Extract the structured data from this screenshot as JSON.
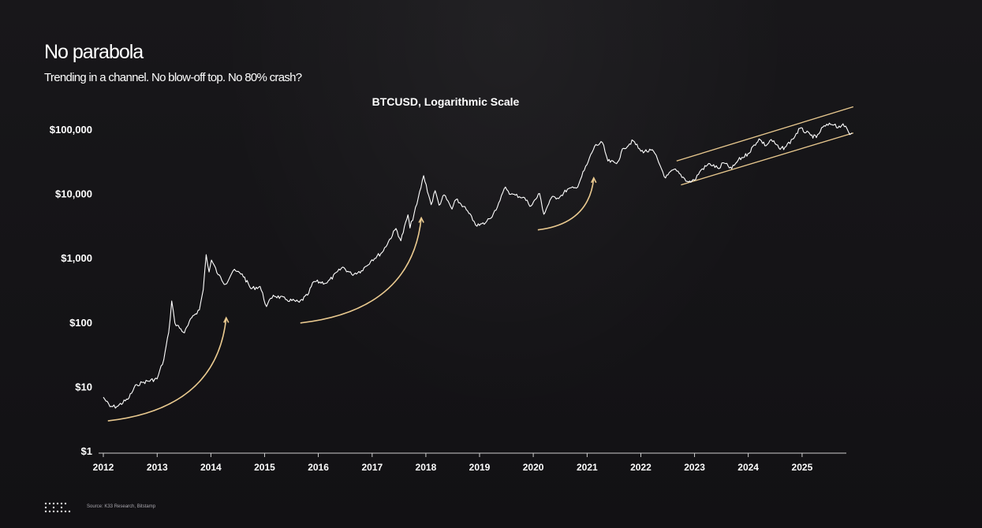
{
  "header": {
    "title": "No parabola",
    "subtitle": "Trending in a channel. No blow-off top. No 80% crash?"
  },
  "footer": {
    "logo_icon": "k33-dots-logo-icon",
    "source": "Source: K33 Research, Bitstamp"
  },
  "colors": {
    "background": "#141316",
    "price_line": "#ffffff",
    "accent": "#e9c98f",
    "axis": "#cfcfcf"
  },
  "chart_data": {
    "type": "line",
    "title": "BTCUSD, Logarithmic Scale",
    "xlabel": "",
    "ylabel": "",
    "y_scale": "log",
    "xlim": [
      "2012-01-01",
      "2025-12-15"
    ],
    "ylim": [
      1,
      200000
    ],
    "x_ticks": [
      "2012",
      "2013",
      "2014",
      "2015",
      "2016",
      "2017",
      "2018",
      "2019",
      "2020",
      "2021",
      "2022",
      "2023",
      "2024",
      "2025"
    ],
    "y_ticks": [
      {
        "value": 1,
        "label": "$1"
      },
      {
        "value": 10,
        "label": "$10"
      },
      {
        "value": 100,
        "label": "$100"
      },
      {
        "value": 1000,
        "label": "$1,000"
      },
      {
        "value": 10000,
        "label": "$10,000"
      },
      {
        "value": 100000,
        "label": "$100,000"
      }
    ],
    "grid": false,
    "series": [
      {
        "points": [
          [
            "2012-01-01",
            7
          ],
          [
            "2012-02-15",
            5
          ],
          [
            "2012-04-01",
            5
          ],
          [
            "2012-06-15",
            6.5
          ],
          [
            "2012-08-15",
            11
          ],
          [
            "2012-10-01",
            12
          ],
          [
            "2012-12-31",
            13.5
          ],
          [
            "2013-02-15",
            27
          ],
          [
            "2013-03-20",
            70
          ],
          [
            "2013-04-10",
            220
          ],
          [
            "2013-05-01",
            100
          ],
          [
            "2013-07-05",
            70
          ],
          [
            "2013-09-01",
            130
          ],
          [
            "2013-10-15",
            160
          ],
          [
            "2013-11-10",
            330
          ],
          [
            "2013-11-30",
            1150
          ],
          [
            "2013-12-20",
            620
          ],
          [
            "2014-01-05",
            950
          ],
          [
            "2014-02-20",
            560
          ],
          [
            "2014-04-10",
            400
          ],
          [
            "2014-06-01",
            650
          ],
          [
            "2014-08-01",
            580
          ],
          [
            "2014-10-01",
            340
          ],
          [
            "2014-12-01",
            370
          ],
          [
            "2015-01-14",
            180
          ],
          [
            "2015-03-01",
            270
          ],
          [
            "2015-06-01",
            230
          ],
          [
            "2015-08-25",
            210
          ],
          [
            "2015-10-20",
            270
          ],
          [
            "2015-12-01",
            440
          ],
          [
            "2016-03-01",
            420
          ],
          [
            "2016-06-15",
            740
          ],
          [
            "2016-08-15",
            570
          ],
          [
            "2016-10-20",
            650
          ],
          [
            "2016-12-31",
            960
          ],
          [
            "2017-03-10",
            1250
          ],
          [
            "2017-06-12",
            2950
          ],
          [
            "2017-07-15",
            1900
          ],
          [
            "2017-09-01",
            4800
          ],
          [
            "2017-09-15",
            3000
          ],
          [
            "2017-11-01",
            7000
          ],
          [
            "2017-12-17",
            19500
          ],
          [
            "2018-02-06",
            6900
          ],
          [
            "2018-03-05",
            11400
          ],
          [
            "2018-04-01",
            6800
          ],
          [
            "2018-05-05",
            9800
          ],
          [
            "2018-06-28",
            5900
          ],
          [
            "2018-07-25",
            8300
          ],
          [
            "2018-09-15",
            6500
          ],
          [
            "2018-11-25",
            3800
          ],
          [
            "2018-12-15",
            3200
          ],
          [
            "2019-02-10",
            3600
          ],
          [
            "2019-04-05",
            5000
          ],
          [
            "2019-05-20",
            8000
          ],
          [
            "2019-06-26",
            13000
          ],
          [
            "2019-08-01",
            10000
          ],
          [
            "2019-09-01",
            9700
          ],
          [
            "2019-10-26",
            9000
          ],
          [
            "2019-12-17",
            6600
          ],
          [
            "2020-02-13",
            10300
          ],
          [
            "2020-03-13",
            4900
          ],
          [
            "2020-05-01",
            8700
          ],
          [
            "2020-07-01",
            9200
          ],
          [
            "2020-08-20",
            12000
          ],
          [
            "2020-10-20",
            12500
          ],
          [
            "2020-12-31",
            29000
          ],
          [
            "2021-02-21",
            56000
          ],
          [
            "2021-04-14",
            64000
          ],
          [
            "2021-05-22",
            33000
          ],
          [
            "2021-07-20",
            30000
          ],
          [
            "2021-09-06",
            52000
          ],
          [
            "2021-11-10",
            68000
          ],
          [
            "2022-01-01",
            47000
          ],
          [
            "2022-03-28",
            47000
          ],
          [
            "2022-05-12",
            28000
          ],
          [
            "2022-06-18",
            18000
          ],
          [
            "2022-08-15",
            24500
          ],
          [
            "2022-11-21",
            15600
          ],
          [
            "2022-12-31",
            16600
          ],
          [
            "2023-02-15",
            24000
          ],
          [
            "2023-04-15",
            30000
          ],
          [
            "2023-06-15",
            25000
          ],
          [
            "2023-07-15",
            31000
          ],
          [
            "2023-09-11",
            25000
          ],
          [
            "2023-10-25",
            34000
          ],
          [
            "2023-12-31",
            43000
          ],
          [
            "2024-03-14",
            73000
          ],
          [
            "2024-05-01",
            57000
          ],
          [
            "2024-06-05",
            71000
          ],
          [
            "2024-08-05",
            50000
          ],
          [
            "2024-09-06",
            54000
          ],
          [
            "2024-10-29",
            72000
          ],
          [
            "2024-12-17",
            106000
          ],
          [
            "2025-02-28",
            83000
          ],
          [
            "2025-04-08",
            76000
          ],
          [
            "2025-05-22",
            111000
          ],
          [
            "2025-07-14",
            122000
          ],
          [
            "2025-08-14",
            124000
          ],
          [
            "2025-09-01",
            108000
          ],
          [
            "2025-10-06",
            125000
          ],
          [
            "2025-11-21",
            85000
          ],
          [
            "2025-12-06",
            90000
          ]
        ]
      }
    ],
    "annotations": {
      "channel": {
        "upper": [
          [
            "2022-09-01",
            33000
          ],
          [
            "2025-12-15",
            230000
          ]
        ],
        "lower": [
          [
            "2022-10-01",
            14000
          ],
          [
            "2025-12-15",
            90000
          ]
        ]
      },
      "rally_arrows": [
        {
          "from": [
            "2012-02-01",
            3
          ],
          "to": [
            "2014-04-15",
            120
          ]
        },
        {
          "from": [
            "2015-09-01",
            100
          ],
          "to": [
            "2017-12-01",
            4300
          ]
        },
        {
          "from": [
            "2020-02-01",
            2800
          ],
          "to": [
            "2021-02-15",
            18000
          ]
        }
      ]
    }
  }
}
